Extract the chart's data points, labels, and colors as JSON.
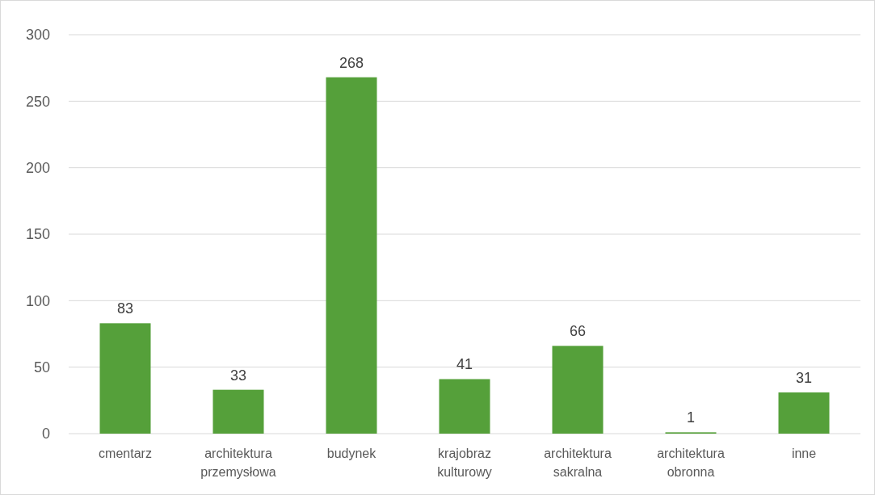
{
  "chart_data": {
    "type": "bar",
    "categories": [
      "cmentarz",
      "architektura przemysłowa",
      "budynek",
      "krajobraz kulturowy",
      "architektura sakralna",
      "architektura obronna",
      "inne"
    ],
    "values": [
      83,
      33,
      268,
      41,
      66,
      1,
      31
    ],
    "color": "#55a03a",
    "ylim": [
      0,
      300
    ],
    "yticks": [
      0,
      50,
      100,
      150,
      200,
      250,
      300
    ],
    "grid": "y",
    "data_labels": true
  }
}
